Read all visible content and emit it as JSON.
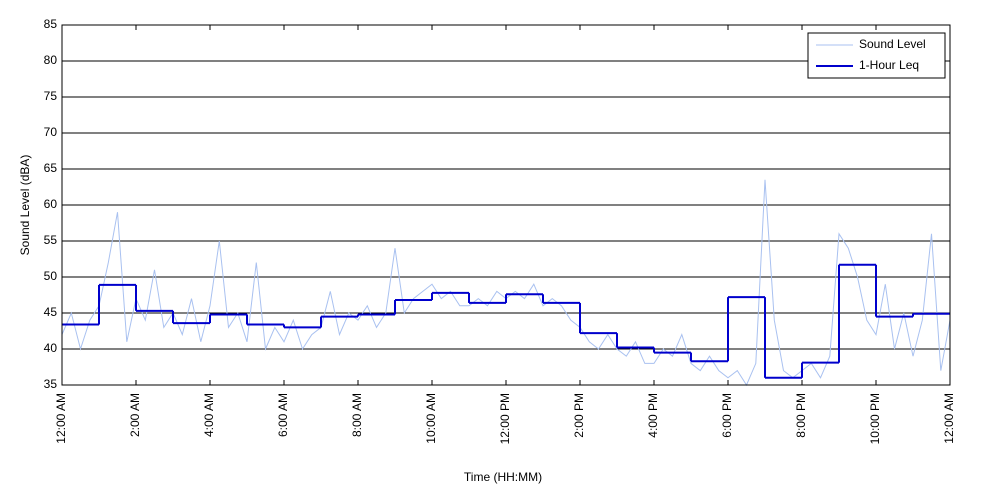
{
  "chart_data": {
    "type": "line",
    "xlabel": "Time (HH:MM)",
    "ylabel": "Sound Level (dBA)",
    "xlim": [
      0,
      24
    ],
    "ylim": [
      35,
      85
    ],
    "xticks": [
      {
        "value": 0,
        "label": "12:00 AM"
      },
      {
        "value": 2,
        "label": "2:00 AM"
      },
      {
        "value": 4,
        "label": "4:00 AM"
      },
      {
        "value": 6,
        "label": "6:00 AM"
      },
      {
        "value": 8,
        "label": "8:00 AM"
      },
      {
        "value": 10,
        "label": "10:00 AM"
      },
      {
        "value": 12,
        "label": "12:00 PM"
      },
      {
        "value": 14,
        "label": "2:00 PM"
      },
      {
        "value": 16,
        "label": "4:00 PM"
      },
      {
        "value": 18,
        "label": "6:00 PM"
      },
      {
        "value": 20,
        "label": "8:00 PM"
      },
      {
        "value": 22,
        "label": "10:00 PM"
      },
      {
        "value": 24,
        "label": "12:00 AM"
      }
    ],
    "yticks": [
      35,
      40,
      45,
      50,
      55,
      60,
      65,
      70,
      75,
      80,
      85
    ],
    "grid": "y",
    "legend": "top-right",
    "series": [
      {
        "name": "Sound Level",
        "color": "#a9c1f0",
        "style": "line",
        "x": [
          0,
          0.25,
          0.5,
          0.75,
          1,
          1.25,
          1.5,
          1.75,
          2,
          2.25,
          2.5,
          2.75,
          3,
          3.25,
          3.5,
          3.75,
          4,
          4.25,
          4.5,
          4.75,
          5,
          5.25,
          5.5,
          5.75,
          6,
          6.25,
          6.5,
          6.75,
          7,
          7.25,
          7.5,
          7.75,
          8,
          8.25,
          8.5,
          8.75,
          9,
          9.25,
          9.5,
          9.75,
          10,
          10.25,
          10.5,
          10.75,
          11,
          11.25,
          11.5,
          11.75,
          12,
          12.25,
          12.5,
          12.75,
          13,
          13.25,
          13.5,
          13.75,
          14,
          14.25,
          14.5,
          14.75,
          15,
          15.25,
          15.5,
          15.75,
          16,
          16.25,
          16.5,
          16.75,
          17,
          17.25,
          17.5,
          17.75,
          18,
          18.25,
          18.5,
          18.75,
          19,
          19.25,
          19.5,
          19.75,
          20,
          20.25,
          20.5,
          20.75,
          21,
          21.25,
          21.5,
          21.75,
          22,
          22.25,
          22.5,
          22.75,
          23,
          23.25,
          23.5,
          23.75,
          24
        ],
        "values": [
          42,
          45,
          40,
          44,
          46,
          52,
          59,
          41,
          47,
          44,
          51,
          43,
          45,
          42,
          47,
          41,
          46,
          55,
          43,
          45,
          41,
          52,
          40,
          43,
          41,
          44,
          40,
          42,
          43,
          48,
          42,
          45,
          44,
          46,
          43,
          45,
          54,
          45,
          47,
          48,
          49,
          47,
          48,
          46,
          46,
          47,
          46,
          48,
          47,
          48,
          47,
          49,
          46,
          47,
          46,
          44,
          43,
          41,
          40,
          42,
          40,
          39,
          41,
          38,
          38,
          40,
          39,
          42,
          38,
          37,
          39,
          37,
          36,
          37,
          35,
          38,
          63.5,
          44,
          37,
          36,
          37,
          38,
          36,
          39,
          56,
          54,
          50,
          44,
          42,
          49,
          40,
          45,
          39,
          44,
          56,
          37,
          44
        ]
      },
      {
        "name": "1-Hour Leq",
        "color": "#0000cc",
        "style": "step",
        "x": [
          0,
          1,
          2,
          3,
          4,
          5,
          6,
          7,
          8,
          9,
          10,
          11,
          12,
          13,
          14,
          15,
          16,
          17,
          18,
          19,
          20,
          21,
          22,
          23
        ],
        "values": [
          43.4,
          48.9,
          45.3,
          43.6,
          44.8,
          43.4,
          43.0,
          44.5,
          44.8,
          46.8,
          47.8,
          46.4,
          47.6,
          46.4,
          42.2,
          40.2,
          39.5,
          38.3,
          47.2,
          36.0,
          38.1,
          51.7,
          44.5,
          44.9
        ]
      }
    ]
  }
}
